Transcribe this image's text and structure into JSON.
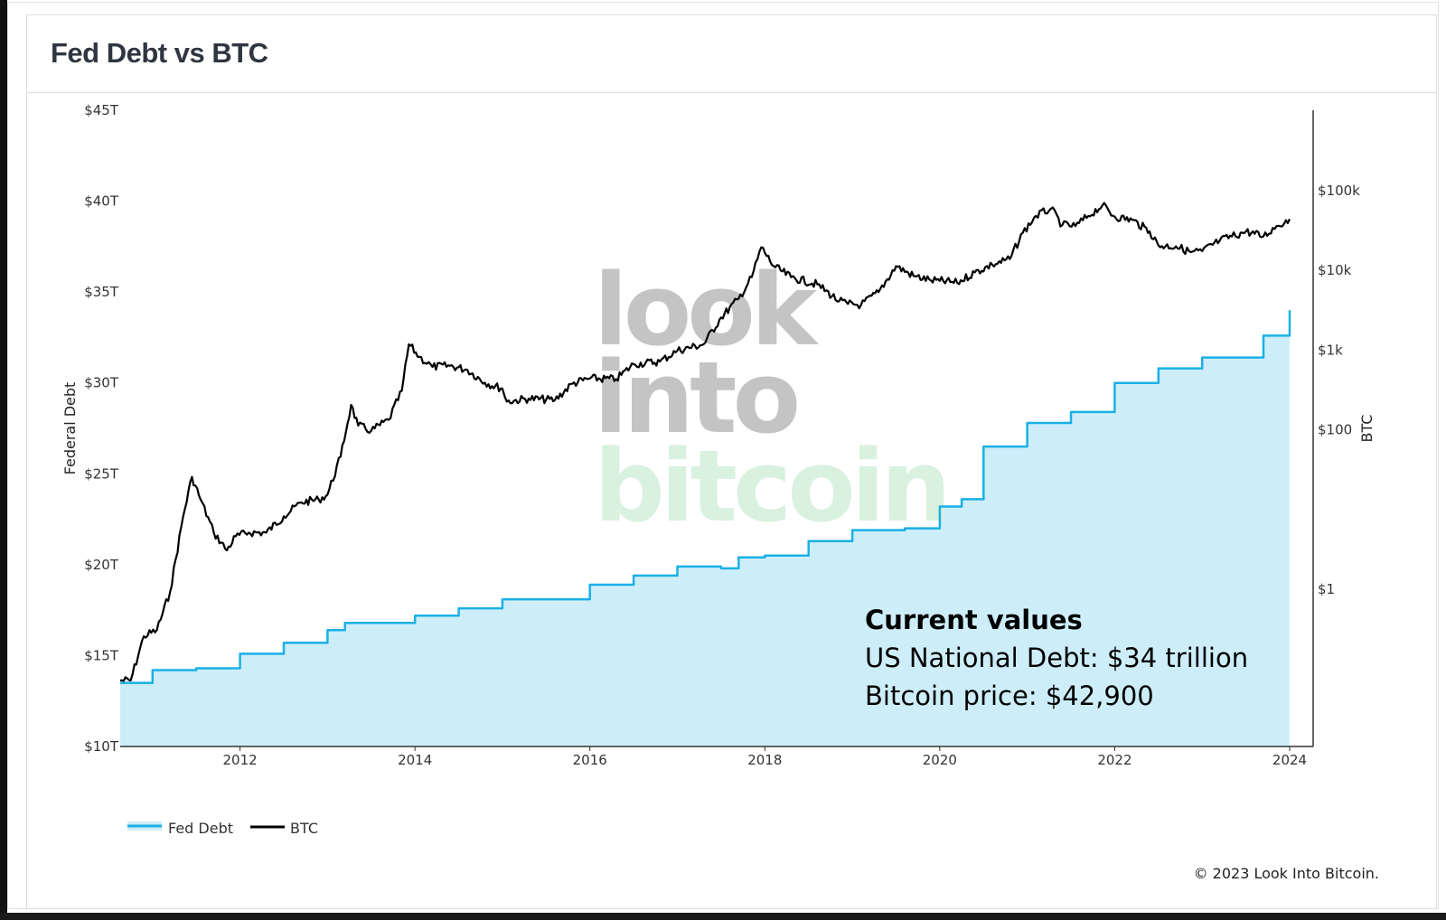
{
  "card": {
    "title": "Fed Debt vs BTC"
  },
  "watermark": {
    "line1": "look",
    "line2": "into",
    "line3": "bitcoin"
  },
  "annotation": {
    "title": "Current values",
    "line1": "US National Debt: $34 trillion",
    "line2": "Bitcoin price: $42,900"
  },
  "copyright": "© 2023 Look Into Bitcoin.",
  "colors": {
    "fed_debt_line": "#1ab0e6",
    "fed_debt_fill": "#cdeef9",
    "btc_line": "#000000",
    "watermark_gray": "#c4c4c4",
    "watermark_green": "#d9f1df"
  },
  "chart_data": {
    "type": "line",
    "title": "Fed Debt vs BTC",
    "x_ticks": [
      "2012",
      "2014",
      "2016",
      "2018",
      "2020",
      "2022",
      "2024"
    ],
    "x_range": [
      2010.63,
      2024.0
    ],
    "y_left": {
      "label": "Federal Debt",
      "ticks": [
        "$10T",
        "$15T",
        "$20T",
        "$25T",
        "$30T",
        "$35T",
        "$40T",
        "$45T"
      ],
      "range": [
        10,
        45
      ],
      "unit": "trillion USD"
    },
    "y_right": {
      "label": "BTC",
      "scale": "log",
      "ticks": [
        "$1",
        "$100",
        "$1k",
        "$10k",
        "$100k"
      ],
      "tick_values": [
        1,
        100,
        1000,
        10000,
        100000
      ]
    },
    "legend": {
      "placement": "bottom-left",
      "items": [
        "Fed Debt",
        "BTC"
      ]
    },
    "series": [
      {
        "name": "Fed Debt",
        "axis": "left",
        "style": "area",
        "x": [
          2010.63,
          2011.0,
          2011.5,
          2012.0,
          2012.5,
          2013.0,
          2013.2,
          2013.8,
          2014.0,
          2014.5,
          2015.0,
          2015.8,
          2016.0,
          2016.5,
          2017.0,
          2017.5,
          2017.7,
          2018.0,
          2018.5,
          2019.0,
          2019.6,
          2020.0,
          2020.25,
          2020.5,
          2021.0,
          2021.5,
          2021.8,
          2022.0,
          2022.5,
          2023.0,
          2023.5,
          2023.7,
          2024.0
        ],
        "y": [
          13.5,
          14.2,
          14.3,
          15.1,
          15.7,
          16.4,
          16.8,
          16.8,
          17.2,
          17.6,
          18.1,
          18.1,
          18.9,
          19.4,
          19.9,
          19.8,
          20.4,
          20.5,
          21.3,
          21.9,
          22.0,
          23.2,
          23.6,
          26.5,
          27.8,
          28.4,
          28.4,
          30.0,
          30.8,
          31.4,
          31.4,
          32.6,
          34.0
        ]
      },
      {
        "name": "BTC",
        "axis": "right",
        "style": "line",
        "x": [
          2010.63,
          2010.75,
          2010.9,
          2011.05,
          2011.2,
          2011.35,
          2011.45,
          2011.55,
          2011.7,
          2011.85,
          2011.95,
          2012.1,
          2012.3,
          2012.5,
          2012.7,
          2012.9,
          2013.0,
          2013.15,
          2013.27,
          2013.35,
          2013.5,
          2013.7,
          2013.85,
          2013.93,
          2014.05,
          2014.2,
          2014.4,
          2014.6,
          2014.8,
          2015.0,
          2015.05,
          2015.3,
          2015.6,
          2015.8,
          2016.0,
          2016.3,
          2016.5,
          2016.8,
          2017.0,
          2017.3,
          2017.5,
          2017.7,
          2017.85,
          2017.96,
          2018.1,
          2018.3,
          2018.6,
          2018.85,
          2018.95,
          2019.1,
          2019.3,
          2019.5,
          2019.7,
          2019.9,
          2020.0,
          2020.2,
          2020.4,
          2020.6,
          2020.8,
          2020.95,
          2021.1,
          2021.27,
          2021.4,
          2021.55,
          2021.7,
          2021.86,
          2022.0,
          2022.2,
          2022.4,
          2022.5,
          2022.7,
          2022.87,
          2023.0,
          2023.2,
          2023.5,
          2023.7,
          2023.85,
          2024.0
        ],
        "y": [
          0.07,
          0.07,
          0.25,
          0.3,
          0.9,
          8,
          25,
          13,
          5,
          3,
          4.5,
          5,
          5,
          8,
          12,
          13,
          15,
          45,
          200,
          110,
          95,
          130,
          300,
          1150,
          800,
          600,
          620,
          550,
          380,
          320,
          220,
          240,
          230,
          370,
          430,
          420,
          650,
          700,
          960,
          1150,
          2500,
          4300,
          8000,
          19000,
          11000,
          8000,
          6500,
          4000,
          3700,
          3600,
          5200,
          11000,
          8300,
          7300,
          7200,
          6800,
          9200,
          11500,
          13500,
          29000,
          47000,
          58000,
          36000,
          35000,
          47000,
          64000,
          46000,
          42000,
          30000,
          20000,
          19500,
          16500,
          17000,
          23000,
          30000,
          26000,
          35000,
          42900
        ]
      }
    ]
  }
}
